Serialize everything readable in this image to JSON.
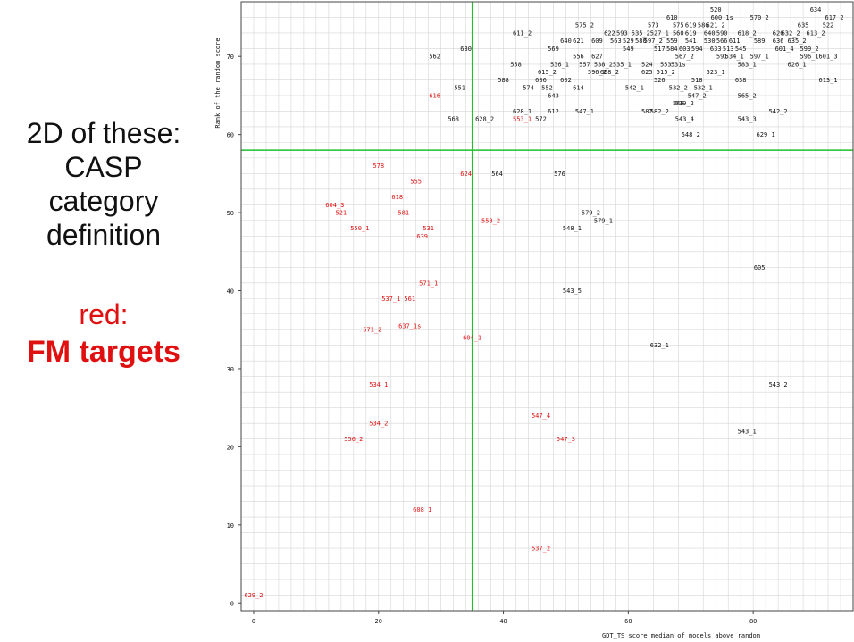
{
  "caption": {
    "line1": "2D of these:",
    "line2": "CASP",
    "line3": "category",
    "line4": "definition",
    "red_line1": "red:",
    "red_line2": "FM targets"
  },
  "chart_data": {
    "type": "scatter",
    "title": "",
    "xlabel": "GDT_TS score median of models above random",
    "ylabel": "Rank of the random score",
    "xlim": [
      -2,
      96
    ],
    "ylim": [
      -1,
      77
    ],
    "xticks": [
      0,
      20,
      40,
      60,
      80
    ],
    "yticks": [
      0,
      10,
      20,
      30,
      40,
      50,
      60,
      70
    ],
    "grid": true,
    "threshold_lines": {
      "x": 35,
      "y": 58
    },
    "colors": {
      "fm": "#e01010",
      "other": "#111111",
      "threshold": "#1fbf2a",
      "grid": "#d6d6d6"
    },
    "points": [
      {
        "label": "629_2",
        "x": 0,
        "y": 1,
        "fm": true
      },
      {
        "label": "550_2",
        "x": 16,
        "y": 21,
        "fm": true
      },
      {
        "label": "534_2",
        "x": 20,
        "y": 23,
        "fm": true
      },
      {
        "label": "534_1",
        "x": 20,
        "y": 28,
        "fm": true
      },
      {
        "label": "608_1",
        "x": 27,
        "y": 12,
        "fm": true
      },
      {
        "label": "537_2",
        "x": 46,
        "y": 7,
        "fm": true
      },
      {
        "label": "547_4",
        "x": 46,
        "y": 24,
        "fm": true
      },
      {
        "label": "547_3",
        "x": 50,
        "y": 21,
        "fm": true
      },
      {
        "label": "571_2",
        "x": 19,
        "y": 35,
        "fm": true
      },
      {
        "label": "637_1s",
        "x": 25,
        "y": 35.5,
        "fm": true
      },
      {
        "label": "604_1",
        "x": 35,
        "y": 34,
        "fm": true
      },
      {
        "label": "537_1",
        "x": 22,
        "y": 39,
        "fm": true
      },
      {
        "label": "561",
        "x": 25,
        "y": 39,
        "fm": true
      },
      {
        "label": "571_1",
        "x": 28,
        "y": 41,
        "fm": true
      },
      {
        "label": "550_1",
        "x": 17,
        "y": 48,
        "fm": true
      },
      {
        "label": "531",
        "x": 28,
        "y": 48,
        "fm": true
      },
      {
        "label": "639",
        "x": 27,
        "y": 47,
        "fm": true
      },
      {
        "label": "604_3",
        "x": 13,
        "y": 51,
        "fm": true
      },
      {
        "label": "521",
        "x": 14,
        "y": 50,
        "fm": true
      },
      {
        "label": "581",
        "x": 24,
        "y": 50,
        "fm": true
      },
      {
        "label": "618",
        "x": 23,
        "y": 52,
        "fm": true
      },
      {
        "label": "555",
        "x": 26,
        "y": 54,
        "fm": true
      },
      {
        "label": "578",
        "x": 20,
        "y": 56,
        "fm": true
      },
      {
        "label": "624",
        "x": 34,
        "y": 55,
        "fm": true
      },
      {
        "label": "553_2",
        "x": 38,
        "y": 49,
        "fm": true
      },
      {
        "label": "616",
        "x": 29,
        "y": 65,
        "fm": true
      },
      {
        "label": "553_1",
        "x": 43,
        "y": 62,
        "fm": true
      },
      {
        "label": "564",
        "x": 39,
        "y": 55,
        "fm": false
      },
      {
        "label": "576",
        "x": 49,
        "y": 55,
        "fm": false
      },
      {
        "label": "579_2",
        "x": 54,
        "y": 50,
        "fm": false
      },
      {
        "label": "579_1",
        "x": 56,
        "y": 49,
        "fm": false
      },
      {
        "label": "548_1",
        "x": 51,
        "y": 48,
        "fm": false
      },
      {
        "label": "543_5",
        "x": 51,
        "y": 40,
        "fm": false
      },
      {
        "label": "605",
        "x": 81,
        "y": 43,
        "fm": false
      },
      {
        "label": "632_1",
        "x": 65,
        "y": 33,
        "fm": false
      },
      {
        "label": "543_2",
        "x": 84,
        "y": 28,
        "fm": false
      },
      {
        "label": "543_1",
        "x": 79,
        "y": 22,
        "fm": false
      },
      {
        "label": "548_2",
        "x": 70,
        "y": 60,
        "fm": false
      },
      {
        "label": "629_1",
        "x": 82,
        "y": 60,
        "fm": false
      },
      {
        "label": "568",
        "x": 32,
        "y": 62,
        "fm": false
      },
      {
        "label": "628_2",
        "x": 37,
        "y": 62,
        "fm": false
      },
      {
        "label": "572",
        "x": 46,
        "y": 62,
        "fm": false
      },
      {
        "label": "543_4",
        "x": 69,
        "y": 62,
        "fm": false
      },
      {
        "label": "543_3",
        "x": 79,
        "y": 62,
        "fm": false
      },
      {
        "label": "628_1",
        "x": 43,
        "y": 63,
        "fm": false
      },
      {
        "label": "612",
        "x": 48,
        "y": 63,
        "fm": false
      },
      {
        "label": "547_1",
        "x": 53,
        "y": 63,
        "fm": false
      },
      {
        "label": "582",
        "x": 63,
        "y": 63,
        "fm": false
      },
      {
        "label": "582_2",
        "x": 65,
        "y": 63,
        "fm": false
      },
      {
        "label": "542_2",
        "x": 84,
        "y": 63,
        "fm": false
      },
      {
        "label": "545",
        "x": 68,
        "y": 64,
        "fm": false
      },
      {
        "label": "539_2",
        "x": 69,
        "y": 64,
        "fm": false
      },
      {
        "label": "643",
        "x": 48,
        "y": 65,
        "fm": false
      },
      {
        "label": "547_2",
        "x": 71,
        "y": 65,
        "fm": false
      },
      {
        "label": "565_2",
        "x": 79,
        "y": 65,
        "fm": false
      },
      {
        "label": "551",
        "x": 33,
        "y": 66,
        "fm": false
      },
      {
        "label": "574",
        "x": 44,
        "y": 66,
        "fm": false
      },
      {
        "label": "552",
        "x": 47,
        "y": 66,
        "fm": false
      },
      {
        "label": "614",
        "x": 52,
        "y": 66,
        "fm": false
      },
      {
        "label": "542_1",
        "x": 61,
        "y": 66,
        "fm": false
      },
      {
        "label": "532_2",
        "x": 68,
        "y": 66,
        "fm": false
      },
      {
        "label": "532_1",
        "x": 72,
        "y": 66,
        "fm": false
      },
      {
        "label": "588",
        "x": 40,
        "y": 67,
        "fm": false
      },
      {
        "label": "606",
        "x": 46,
        "y": 67,
        "fm": false
      },
      {
        "label": "602",
        "x": 50,
        "y": 67,
        "fm": false
      },
      {
        "label": "526",
        "x": 65,
        "y": 67,
        "fm": false
      },
      {
        "label": "518",
        "x": 71,
        "y": 67,
        "fm": false
      },
      {
        "label": "638",
        "x": 78,
        "y": 67,
        "fm": false
      },
      {
        "label": "613_1",
        "x": 92,
        "y": 67,
        "fm": false
      },
      {
        "label": "615_2",
        "x": 47,
        "y": 68,
        "fm": false
      },
      {
        "label": "596_2",
        "x": 55,
        "y": 68,
        "fm": false
      },
      {
        "label": "608_2",
        "x": 57,
        "y": 68,
        "fm": false
      },
      {
        "label": "625",
        "x": 63,
        "y": 68,
        "fm": false
      },
      {
        "label": "515_2",
        "x": 66,
        "y": 68,
        "fm": false
      },
      {
        "label": "523_1",
        "x": 74,
        "y": 68,
        "fm": false
      },
      {
        "label": "558",
        "x": 42,
        "y": 69,
        "fm": false
      },
      {
        "label": "536_1",
        "x": 49,
        "y": 69,
        "fm": false
      },
      {
        "label": "557",
        "x": 53,
        "y": 69,
        "fm": false
      },
      {
        "label": "538_2",
        "x": 56,
        "y": 69,
        "fm": false
      },
      {
        "label": "535_1",
        "x": 59,
        "y": 69,
        "fm": false
      },
      {
        "label": "524",
        "x": 63,
        "y": 69,
        "fm": false
      },
      {
        "label": "553",
        "x": 66,
        "y": 69,
        "fm": false
      },
      {
        "label": "531s",
        "x": 68,
        "y": 69,
        "fm": false
      },
      {
        "label": "583_1",
        "x": 79,
        "y": 69,
        "fm": false
      },
      {
        "label": "626_1",
        "x": 87,
        "y": 69,
        "fm": false
      },
      {
        "label": "562",
        "x": 29,
        "y": 70,
        "fm": false
      },
      {
        "label": "556",
        "x": 52,
        "y": 70,
        "fm": false
      },
      {
        "label": "627",
        "x": 55,
        "y": 70,
        "fm": false
      },
      {
        "label": "567_2",
        "x": 69,
        "y": 70,
        "fm": false
      },
      {
        "label": "591",
        "x": 75,
        "y": 70,
        "fm": false
      },
      {
        "label": "534_1",
        "x": 77,
        "y": 70,
        "fm": false
      },
      {
        "label": "597_1",
        "x": 81,
        "y": 70,
        "fm": false
      },
      {
        "label": "596_1",
        "x": 89,
        "y": 70,
        "fm": false
      },
      {
        "label": "601_3",
        "x": 92,
        "y": 70,
        "fm": false
      },
      {
        "label": "630",
        "x": 34,
        "y": 71,
        "fm": false
      },
      {
        "label": "569",
        "x": 48,
        "y": 71,
        "fm": false
      },
      {
        "label": "549",
        "x": 60,
        "y": 71,
        "fm": false
      },
      {
        "label": "517",
        "x": 65,
        "y": 71,
        "fm": false
      },
      {
        "label": "584",
        "x": 67,
        "y": 71,
        "fm": false
      },
      {
        "label": "603",
        "x": 69,
        "y": 71,
        "fm": false
      },
      {
        "label": "594",
        "x": 71,
        "y": 71,
        "fm": false
      },
      {
        "label": "633",
        "x": 74,
        "y": 71,
        "fm": false
      },
      {
        "label": "513",
        "x": 76,
        "y": 71,
        "fm": false
      },
      {
        "label": "545",
        "x": 78,
        "y": 71,
        "fm": false
      },
      {
        "label": "601_4",
        "x": 85,
        "y": 71,
        "fm": false
      },
      {
        "label": "599_2",
        "x": 89,
        "y": 71,
        "fm": false
      },
      {
        "label": "640",
        "x": 50,
        "y": 72,
        "fm": false
      },
      {
        "label": "621",
        "x": 52,
        "y": 72,
        "fm": false
      },
      {
        "label": "609",
        "x": 55,
        "y": 72,
        "fm": false
      },
      {
        "label": "563",
        "x": 58,
        "y": 72,
        "fm": false
      },
      {
        "label": "529",
        "x": 60,
        "y": 72,
        "fm": false
      },
      {
        "label": "580",
        "x": 62,
        "y": 72,
        "fm": false
      },
      {
        "label": "597_2",
        "x": 64,
        "y": 72,
        "fm": false
      },
      {
        "label": "559",
        "x": 67,
        "y": 72,
        "fm": false
      },
      {
        "label": "541",
        "x": 70,
        "y": 72,
        "fm": false
      },
      {
        "label": "530",
        "x": 73,
        "y": 72,
        "fm": false
      },
      {
        "label": "566",
        "x": 75,
        "y": 72,
        "fm": false
      },
      {
        "label": "611",
        "x": 77,
        "y": 72,
        "fm": false
      },
      {
        "label": "589",
        "x": 81,
        "y": 72,
        "fm": false
      },
      {
        "label": "636",
        "x": 84,
        "y": 72,
        "fm": false
      },
      {
        "label": "635_2",
        "x": 87,
        "y": 72,
        "fm": false
      },
      {
        "label": "611_2",
        "x": 43,
        "y": 73,
        "fm": false
      },
      {
        "label": "622",
        "x": 57,
        "y": 73,
        "fm": false
      },
      {
        "label": "593",
        "x": 59,
        "y": 73,
        "fm": false
      },
      {
        "label": "535_2",
        "x": 62,
        "y": 73,
        "fm": false
      },
      {
        "label": "527_1",
        "x": 65,
        "y": 73,
        "fm": false
      },
      {
        "label": "560",
        "x": 68,
        "y": 73,
        "fm": false
      },
      {
        "label": "619",
        "x": 70,
        "y": 73,
        "fm": false
      },
      {
        "label": "640",
        "x": 73,
        "y": 73,
        "fm": false
      },
      {
        "label": "590",
        "x": 75,
        "y": 73,
        "fm": false
      },
      {
        "label": "618_2",
        "x": 79,
        "y": 73,
        "fm": false
      },
      {
        "label": "626",
        "x": 84,
        "y": 73,
        "fm": false
      },
      {
        "label": "632_2",
        "x": 86,
        "y": 73,
        "fm": false
      },
      {
        "label": "613_2",
        "x": 90,
        "y": 73,
        "fm": false
      },
      {
        "label": "575_2",
        "x": 53,
        "y": 74,
        "fm": false
      },
      {
        "label": "573",
        "x": 64,
        "y": 74,
        "fm": false
      },
      {
        "label": "575",
        "x": 68,
        "y": 74,
        "fm": false
      },
      {
        "label": "619",
        "x": 70,
        "y": 74,
        "fm": false
      },
      {
        "label": "586",
        "x": 72,
        "y": 74,
        "fm": false
      },
      {
        "label": "521_2",
        "x": 74,
        "y": 74,
        "fm": false
      },
      {
        "label": "635",
        "x": 88,
        "y": 74,
        "fm": false
      },
      {
        "label": "522",
        "x": 92,
        "y": 74,
        "fm": false
      },
      {
        "label": "610",
        "x": 67,
        "y": 75,
        "fm": false
      },
      {
        "label": "600_1s",
        "x": 75,
        "y": 75,
        "fm": false
      },
      {
        "label": "570_2",
        "x": 81,
        "y": 75,
        "fm": false
      },
      {
        "label": "617_2",
        "x": 93,
        "y": 75,
        "fm": false
      },
      {
        "label": "520",
        "x": 74,
        "y": 76,
        "fm": false
      },
      {
        "label": "634",
        "x": 90,
        "y": 76,
        "fm": false
      }
    ]
  }
}
